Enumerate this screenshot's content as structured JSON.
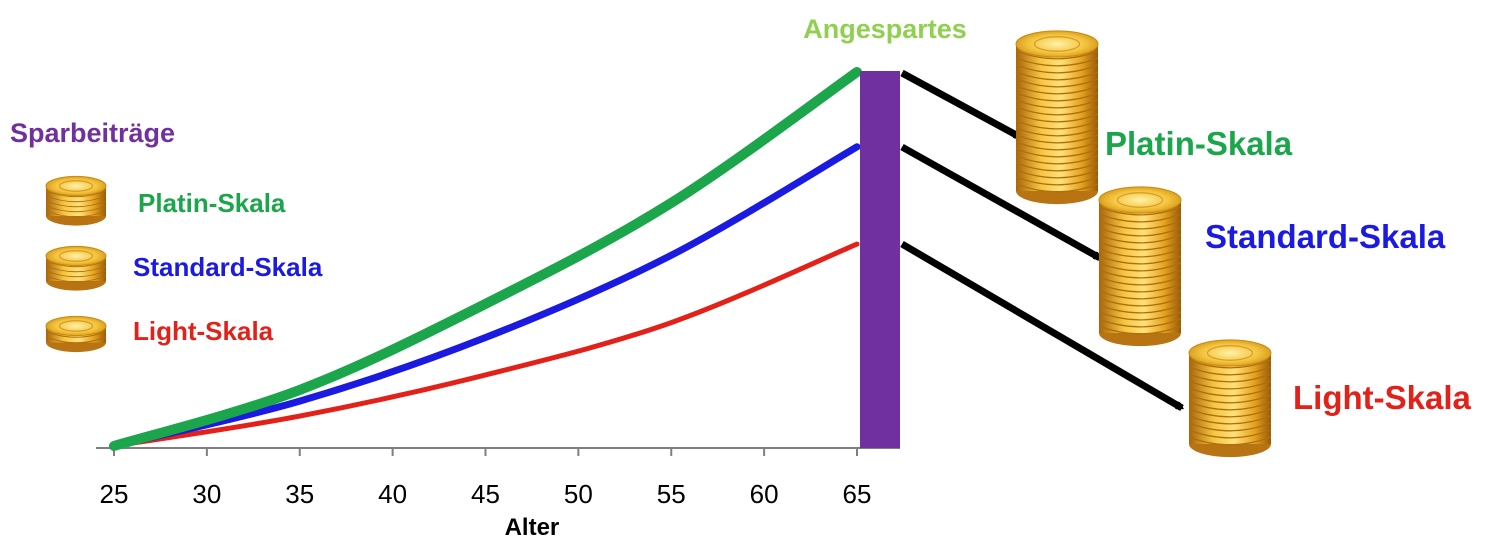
{
  "chart_data": {
    "type": "line",
    "xlabel": "Alter",
    "x_ticks": [
      25,
      30,
      35,
      40,
      45,
      50,
      55,
      60,
      65
    ],
    "xlim": [
      25,
      65
    ],
    "ylim": [
      0,
      100
    ],
    "series": [
      {
        "name": "Platin-Skala",
        "color": "#1ba64b",
        "x": [
          25,
          35,
          45,
          55,
          65
        ],
        "y": [
          0,
          15,
          38,
          65,
          100
        ]
      },
      {
        "name": "Standard-Skala",
        "color": "#1a1ae0",
        "x": [
          25,
          35,
          45,
          55,
          65
        ],
        "y": [
          0,
          12,
          29,
          51,
          80
        ]
      },
      {
        "name": "Light-Skala",
        "color": "#e32119",
        "x": [
          25,
          35,
          45,
          55,
          65
        ],
        "y": [
          0,
          8,
          19,
          33,
          54
        ]
      }
    ]
  },
  "text": {
    "sparbeitraege": "Sparbeiträge",
    "angespartes": "Angespartes",
    "legend_platin": "Platin-Skala",
    "legend_standard": "Standard-Skala",
    "legend_light": "Light-Skala",
    "right_platin": "Platin-Skala",
    "right_standard": "Standard-Skala",
    "right_light": "Light-Skala"
  },
  "colors": {
    "purple": "#7030a0",
    "angespartes_green": "#8fd14f",
    "platin": "#1ba64b",
    "standard": "#1a1ae0",
    "light": "#e32119",
    "coin_gold": "#e8a81c"
  },
  "icons": [
    "coin-stack-icon",
    "arrow-icon"
  ]
}
